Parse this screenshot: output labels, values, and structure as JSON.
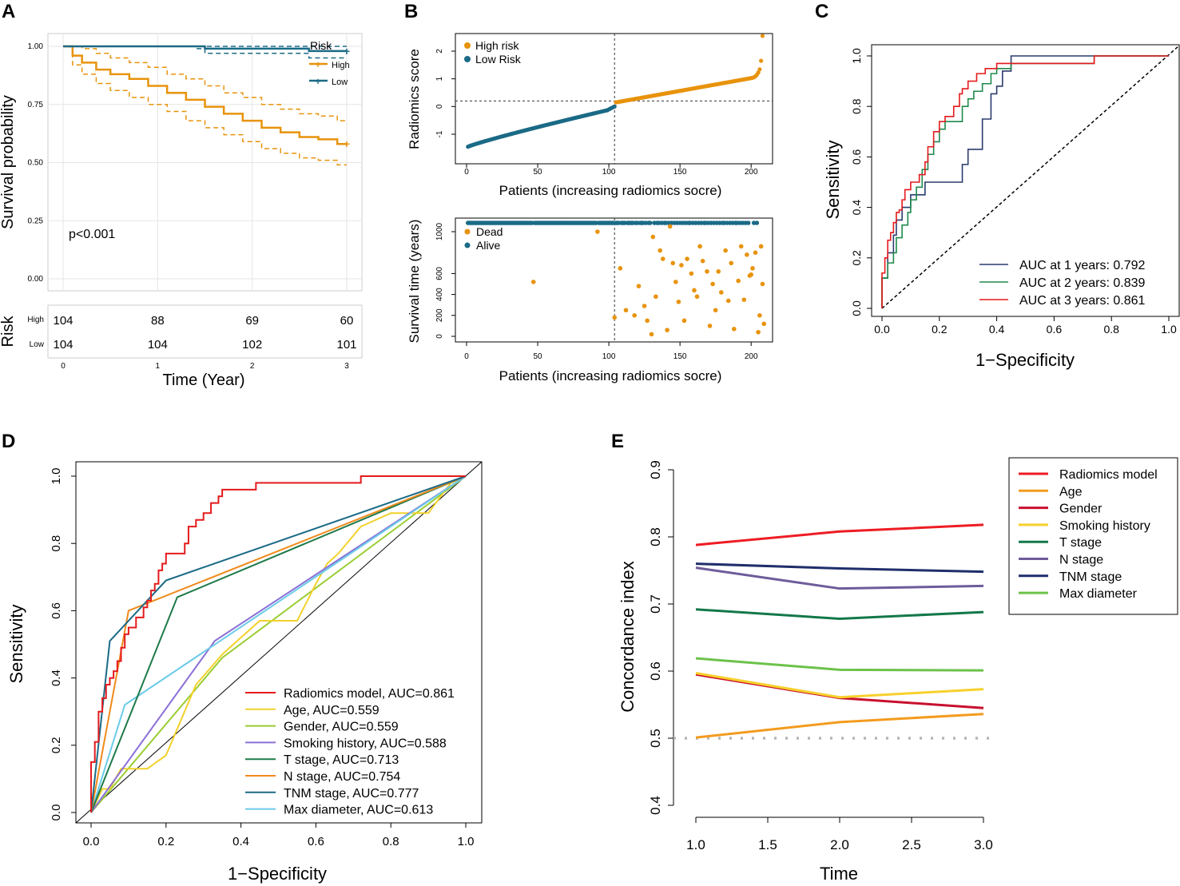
{
  "colors": {
    "high": "#E8930C",
    "low": "#1B6A86",
    "grid": "#e6e6e6"
  },
  "chart_data": [
    {
      "panel": "A",
      "type": "line",
      "title": "",
      "xlabel": "Time (Year)",
      "ylabel": "Survival probability",
      "xlim": [
        0,
        3
      ],
      "ylim": [
        0,
        1
      ],
      "x_ticks": [
        "0",
        "1",
        "2",
        "3"
      ],
      "y_ticks": [
        "0.00",
        "0.25",
        "0.50",
        "0.75",
        "1.00"
      ],
      "legend_title": "Risk",
      "annotation": "p<0.001",
      "series": [
        {
          "name": "High",
          "color": "#E8930C",
          "x": [
            0,
            0.1,
            0.2,
            0.35,
            0.5,
            0.7,
            0.9,
            1.1,
            1.3,
            1.5,
            1.7,
            1.9,
            2.1,
            2.3,
            2.5,
            2.7,
            2.9,
            3.0
          ],
          "y": [
            1.0,
            0.96,
            0.93,
            0.9,
            0.88,
            0.86,
            0.83,
            0.8,
            0.77,
            0.74,
            0.71,
            0.68,
            0.65,
            0.63,
            0.61,
            0.6,
            0.58,
            0.58
          ],
          "ci_upper": [
            1.0,
            1.0,
            0.99,
            0.97,
            0.95,
            0.93,
            0.91,
            0.88,
            0.86,
            0.83,
            0.8,
            0.78,
            0.75,
            0.73,
            0.71,
            0.7,
            0.68,
            0.68
          ],
          "ci_lower": [
            1.0,
            0.92,
            0.88,
            0.84,
            0.81,
            0.78,
            0.75,
            0.72,
            0.68,
            0.65,
            0.62,
            0.59,
            0.56,
            0.54,
            0.52,
            0.51,
            0.49,
            0.49
          ]
        },
        {
          "name": "Low",
          "color": "#1B6A86",
          "x": [
            0,
            1.4,
            1.5,
            2.6,
            3.0
          ],
          "y": [
            1.0,
            1.0,
            0.99,
            0.98,
            0.98
          ],
          "ci_upper": [
            1.0,
            1.0,
            1.0,
            1.0,
            1.0
          ],
          "ci_lower": [
            1.0,
            0.99,
            0.97,
            0.95,
            0.95
          ]
        }
      ],
      "risk_table": {
        "title": "Risk",
        "rows": [
          {
            "label": "High",
            "counts": [
              "104",
              "88",
              "69",
              "60"
            ]
          },
          {
            "label": "Low",
            "counts": [
              "104",
              "104",
              "102",
              "101"
            ]
          }
        ]
      }
    },
    {
      "panel": "B-top",
      "type": "scatter",
      "xlabel": "Patients (increasing radiomics socre)",
      "ylabel": "Radiomics score",
      "xlim": [
        0,
        210
      ],
      "ylim": [
        -1.5,
        2.6
      ],
      "x_ticks": [
        0,
        50,
        100,
        150,
        200
      ],
      "y_ticks": [
        -1,
        0,
        1,
        2
      ],
      "cutoff_x": 104,
      "cutoff_y": 0.2,
      "legend": [
        "High risk",
        "Low Risk"
      ],
      "n_patients": 208
    },
    {
      "panel": "B-bottom",
      "type": "scatter",
      "xlabel": "Patients (increasing radiomics socre)",
      "ylabel": "Survival time (years)",
      "xlim": [
        0,
        210
      ],
      "ylim": [
        0,
        1100
      ],
      "x_ticks": [
        0,
        50,
        100,
        150,
        200
      ],
      "y_ticks": [
        0,
        200,
        400,
        600,
        1000
      ],
      "cutoff_x": 104,
      "legend": [
        "Dead",
        "Alive"
      ],
      "dead_points": [
        [
          47,
          520
        ],
        [
          92,
          1000
        ],
        [
          104,
          180
        ],
        [
          108,
          650
        ],
        [
          112,
          250
        ],
        [
          118,
          200
        ],
        [
          121,
          480
        ],
        [
          125,
          290
        ],
        [
          127,
          150
        ],
        [
          130,
          20
        ],
        [
          131,
          950
        ],
        [
          133,
          380
        ],
        [
          136,
          820
        ],
        [
          138,
          740
        ],
        [
          141,
          60
        ],
        [
          143,
          1050
        ],
        [
          145,
          700
        ],
        [
          147,
          520
        ],
        [
          149,
          330
        ],
        [
          151,
          680
        ],
        [
          153,
          150
        ],
        [
          155,
          740
        ],
        [
          158,
          600
        ],
        [
          160,
          440
        ],
        [
          162,
          380
        ],
        [
          164,
          860
        ],
        [
          166,
          720
        ],
        [
          169,
          620
        ],
        [
          171,
          100
        ],
        [
          173,
          500
        ],
        [
          175,
          250
        ],
        [
          177,
          620
        ],
        [
          179,
          420
        ],
        [
          182,
          820
        ],
        [
          184,
          340
        ],
        [
          186,
          700
        ],
        [
          188,
          70
        ],
        [
          191,
          530
        ],
        [
          193,
          860
        ],
        [
          195,
          350
        ],
        [
          197,
          780
        ],
        [
          199,
          580
        ],
        [
          201,
          650
        ],
        [
          203,
          800
        ],
        [
          205,
          40
        ],
        [
          206,
          200
        ],
        [
          207,
          860
        ],
        [
          208,
          500
        ],
        [
          209,
          120
        ],
        [
          200,
          590
        ]
      ]
    },
    {
      "panel": "C",
      "type": "line",
      "xlabel": "1−Specificity",
      "ylabel": "Sensitivity",
      "xlim": [
        0,
        1
      ],
      "ylim": [
        0,
        1
      ],
      "x_ticks": [
        "0.0",
        "0.2",
        "0.4",
        "0.6",
        "0.8",
        "1.0"
      ],
      "y_ticks": [
        "0.0",
        "0.2",
        "0.4",
        "0.6",
        "0.8",
        "1.0"
      ],
      "series": [
        {
          "name": "AUC at 1 years: 0.792",
          "color": "#2B3B6E",
          "x": [
            0,
            0,
            0.02,
            0.02,
            0.04,
            0.05,
            0.07,
            0.1,
            0.12,
            0.15,
            0.2,
            0.25,
            0.28,
            0.3,
            0.33,
            0.35,
            0.38,
            0.4,
            0.42,
            0.45,
            0.45,
            0.72,
            0.72,
            1
          ],
          "y": [
            0,
            0.12,
            0.17,
            0.22,
            0.29,
            0.35,
            0.4,
            0.45,
            0.45,
            0.5,
            0.5,
            0.5,
            0.57,
            0.63,
            0.63,
            0.75,
            0.85,
            0.88,
            0.94,
            0.97,
            1.0,
            1.0,
            1.0,
            1.0
          ]
        },
        {
          "name": "AUC at 2 years: 0.839",
          "color": "#1E8A4C",
          "x": [
            0,
            0,
            0.02,
            0.04,
            0.05,
            0.07,
            0.09,
            0.1,
            0.12,
            0.14,
            0.16,
            0.18,
            0.2,
            0.22,
            0.25,
            0.28,
            0.3,
            0.32,
            0.35,
            0.38,
            0.4,
            0.45,
            0.6,
            0.72,
            0.74,
            1
          ],
          "y": [
            0,
            0.12,
            0.18,
            0.22,
            0.28,
            0.33,
            0.38,
            0.43,
            0.48,
            0.55,
            0.61,
            0.66,
            0.71,
            0.74,
            0.74,
            0.8,
            0.83,
            0.86,
            0.89,
            0.93,
            0.95,
            0.97,
            0.97,
            0.97,
            1.0,
            1.0
          ]
        },
        {
          "name": "AUC at 3 years: 0.861",
          "color": "#E41A1C",
          "x": [
            0,
            0,
            0.01,
            0.02,
            0.03,
            0.04,
            0.05,
            0.06,
            0.07,
            0.08,
            0.1,
            0.12,
            0.13,
            0.15,
            0.16,
            0.18,
            0.2,
            0.22,
            0.25,
            0.27,
            0.28,
            0.3,
            0.33,
            0.36,
            0.4,
            0.45,
            0.74,
            1
          ],
          "y": [
            0,
            0.14,
            0.2,
            0.27,
            0.3,
            0.34,
            0.38,
            0.39,
            0.43,
            0.47,
            0.5,
            0.5,
            0.53,
            0.58,
            0.64,
            0.7,
            0.74,
            0.76,
            0.8,
            0.85,
            0.87,
            0.9,
            0.93,
            0.95,
            0.97,
            0.97,
            1.0,
            1.0
          ]
        }
      ],
      "legend": [
        "AUC at 1 years: 0.792",
        "AUC at 2 years: 0.839",
        "AUC at 3 years: 0.861"
      ]
    },
    {
      "panel": "D",
      "type": "line",
      "xlabel": "1−Specificity",
      "ylabel": "Sensitivity",
      "xlim": [
        0,
        1
      ],
      "ylim": [
        0,
        1
      ],
      "x_ticks": [
        "0.0",
        "0.2",
        "0.4",
        "0.6",
        "0.8",
        "1.0"
      ],
      "y_ticks": [
        "0.0",
        "0.2",
        "0.4",
        "0.6",
        "0.8",
        "1.0"
      ],
      "series": [
        {
          "name": "Radiomics model, AUC=0.861",
          "color": "#E41A1C",
          "x": [
            0,
            0,
            0.01,
            0.02,
            0.03,
            0.04,
            0.05,
            0.06,
            0.07,
            0.08,
            0.09,
            0.1,
            0.12,
            0.14,
            0.15,
            0.16,
            0.17,
            0.18,
            0.19,
            0.2,
            0.22,
            0.25,
            0.26,
            0.28,
            0.3,
            0.32,
            0.34,
            0.35,
            0.38,
            0.44,
            0.72,
            1
          ],
          "y": [
            0,
            0.15,
            0.21,
            0.3,
            0.34,
            0.38,
            0.4,
            0.42,
            0.45,
            0.49,
            0.53,
            0.55,
            0.58,
            0.61,
            0.63,
            0.66,
            0.68,
            0.72,
            0.74,
            0.77,
            0.77,
            0.8,
            0.85,
            0.87,
            0.89,
            0.92,
            0.94,
            0.96,
            0.96,
            0.98,
            1.0,
            1.0
          ]
        },
        {
          "name": "Age, AUC=0.559",
          "color": "#F2D12B",
          "x": [
            0,
            0.03,
            0.05,
            0.08,
            0.15,
            0.2,
            0.28,
            0.35,
            0.45,
            0.55,
            0.6,
            0.63,
            0.66,
            0.72,
            0.8,
            0.9,
            0.96,
            1
          ],
          "y": [
            0,
            0.07,
            0.07,
            0.13,
            0.13,
            0.17,
            0.38,
            0.47,
            0.57,
            0.57,
            0.68,
            0.74,
            0.77,
            0.85,
            0.89,
            0.89,
            0.98,
            1
          ]
        },
        {
          "name": "Gender, AUC=0.559",
          "color": "#9ACD32",
          "x": [
            0,
            1
          ],
          "y": [
            0,
            1
          ],
          "via": [
            0.35,
            0.46
          ]
        },
        {
          "name": "Smoking history, AUC=0.588",
          "color": "#8B6FD8",
          "x": [
            0,
            0.33,
            1
          ],
          "y": [
            0,
            0.51,
            1
          ]
        },
        {
          "name": "T stage, AUC=0.713",
          "color": "#1E7A4A",
          "x": [
            0,
            0.23,
            1
          ],
          "y": [
            0,
            0.64,
            1
          ]
        },
        {
          "name": "N stage, AUC=0.754",
          "color": "#F08A1C",
          "x": [
            0,
            0.1,
            1
          ],
          "y": [
            0,
            0.6,
            1
          ]
        },
        {
          "name": "TNM stage, AUC=0.777",
          "color": "#1B6A86",
          "x": [
            0,
            0.05,
            0.2,
            1
          ],
          "y": [
            0,
            0.51,
            0.69,
            1
          ]
        },
        {
          "name": "Max diameter, AUC=0.613",
          "color": "#6BCBE8",
          "x": [
            0,
            0.09,
            1
          ],
          "y": [
            0,
            0.32,
            1
          ]
        }
      ],
      "legend": [
        "Radiomics model, AUC=0.861",
        "Age, AUC=0.559",
        "Gender, AUC=0.559",
        "Smoking history, AUC=0.588",
        "T stage, AUC=0.713",
        "N stage, AUC=0.754",
        "TNM stage, AUC=0.777",
        "Max diameter, AUC=0.613"
      ]
    },
    {
      "panel": "E",
      "type": "line",
      "xlabel": "Time",
      "ylabel": "Concordance index",
      "xlim": [
        1.0,
        3.0
      ],
      "ylim": [
        0.4,
        0.9
      ],
      "x_ticks": [
        "1.0",
        "1.5",
        "2.0",
        "2.5",
        "3.0"
      ],
      "y_ticks": [
        "0.4",
        "0.5",
        "0.6",
        "0.7",
        "0.8",
        "0.9"
      ],
      "x": [
        1.0,
        2.0,
        3.0
      ],
      "reference_y": 0.5,
      "series": [
        {
          "name": "Radiomics model",
          "color": "#EE1C24",
          "values": [
            0.788,
            0.808,
            0.818
          ]
        },
        {
          "name": "Age",
          "color": "#F39B1E",
          "values": [
            0.501,
            0.524,
            0.536
          ]
        },
        {
          "name": "Gender",
          "color": "#C8102E",
          "values": [
            0.595,
            0.56,
            0.545
          ]
        },
        {
          "name": "Smoking history",
          "color": "#F7D02C",
          "values": [
            0.597,
            0.561,
            0.573
          ]
        },
        {
          "name": "T stage",
          "color": "#13784A",
          "values": [
            0.692,
            0.678,
            0.688
          ]
        },
        {
          "name": "N stage",
          "color": "#6E5B9A",
          "values": [
            0.754,
            0.723,
            0.727
          ]
        },
        {
          "name": "TNM stage",
          "color": "#1F2E6B",
          "values": [
            0.76,
            0.753,
            0.748
          ]
        },
        {
          "name": "Max diameter",
          "color": "#6CC24A",
          "values": [
            0.619,
            0.602,
            0.601
          ]
        }
      ]
    }
  ]
}
